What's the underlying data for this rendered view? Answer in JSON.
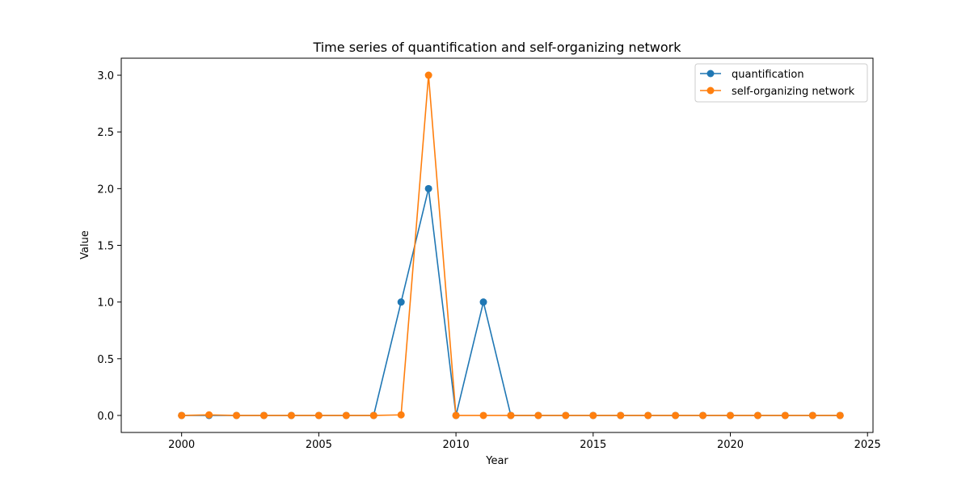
{
  "chart_data": {
    "type": "line",
    "title": "Time series of quantification and self-organizing network",
    "xlabel": "Year",
    "ylabel": "Value",
    "xlim": [
      1997.8,
      2025.2
    ],
    "ylim": [
      -0.15,
      3.15
    ],
    "xticks": [
      2000,
      2005,
      2010,
      2015,
      2020,
      2025
    ],
    "yticks": [
      0.0,
      0.5,
      1.0,
      1.5,
      2.0,
      2.5,
      3.0
    ],
    "ytick_labels": [
      "0.0",
      "0.5",
      "1.0",
      "1.5",
      "2.0",
      "2.5",
      "3.0"
    ],
    "grid": false,
    "legend_position": "top-right",
    "x": [
      2000,
      2001,
      2002,
      2003,
      2004,
      2005,
      2006,
      2007,
      2008,
      2009,
      2010,
      2011,
      2012,
      2013,
      2014,
      2015,
      2016,
      2017,
      2018,
      2019,
      2020,
      2021,
      2022,
      2023,
      2024
    ],
    "series": [
      {
        "name": "quantification",
        "color": "#1f77b4",
        "values": [
          0,
          0,
          0,
          0,
          0,
          0,
          0,
          0,
          1,
          2,
          0,
          1,
          0,
          0,
          0,
          0,
          0,
          0,
          0,
          0,
          0,
          0,
          0,
          0,
          0
        ]
      },
      {
        "name": "self-organizing network",
        "color": "#ff7f0e",
        "values": [
          0,
          0.005,
          0,
          0,
          0,
          0,
          0,
          0,
          0.005,
          3,
          0,
          0,
          0,
          0,
          0,
          0,
          0,
          0,
          0,
          0,
          0,
          0,
          0,
          0,
          0
        ]
      }
    ]
  }
}
